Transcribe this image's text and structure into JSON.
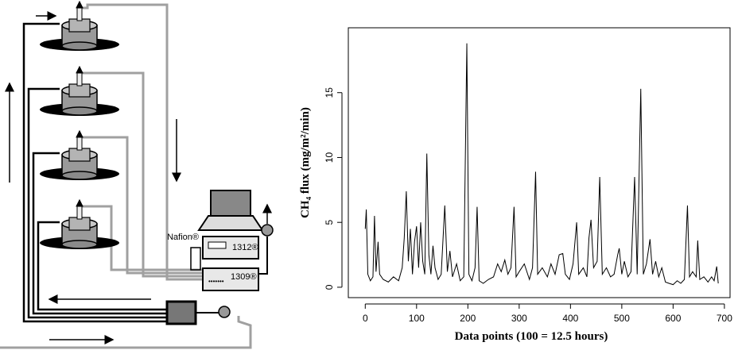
{
  "diagram": {
    "nafion": "Nafion®",
    "analyzer_a": "1312®",
    "analyzer_b": "1309®"
  },
  "chart_data": {
    "type": "line",
    "y_label": "CH₄ flux (mg/m²/min)",
    "x_label": "Data points (100 = 12.5 hours)",
    "xlim": [
      -33,
      711
    ],
    "ylim": [
      -0.8,
      20
    ],
    "xticks": [
      0,
      100,
      200,
      300,
      400,
      500,
      600,
      700
    ],
    "yticks": [
      0,
      5,
      10,
      15
    ],
    "color": "#000000",
    "x": [
      0,
      2,
      5,
      10,
      15,
      18,
      21,
      25,
      28,
      35,
      45,
      55,
      65,
      72,
      76,
      80,
      84,
      88,
      92,
      96,
      100,
      104,
      108,
      112,
      116,
      120,
      124,
      128,
      132,
      136,
      142,
      148,
      155,
      160,
      165,
      170,
      178,
      185,
      192,
      198,
      202,
      208,
      214,
      218,
      222,
      230,
      240,
      250,
      258,
      265,
      272,
      278,
      284,
      290,
      294,
      300,
      310,
      320,
      326,
      332,
      336,
      345,
      355,
      362,
      370,
      378,
      385,
      390,
      398,
      405,
      412,
      416,
      425,
      432,
      436,
      440,
      445,
      452,
      457,
      462,
      470,
      478,
      485,
      492,
      495,
      500,
      505,
      512,
      518,
      525,
      530,
      537,
      542,
      548,
      555,
      560,
      566,
      572,
      578,
      585,
      592,
      600,
      608,
      615,
      622,
      628,
      632,
      638,
      645,
      648,
      652,
      660,
      668,
      675,
      680,
      685,
      688
    ],
    "values": [
      4.5,
      6.0,
      1.0,
      0.5,
      0.8,
      5.5,
      1.2,
      3.5,
      1.0,
      0.6,
      0.4,
      0.8,
      0.5,
      1.5,
      3.8,
      7.4,
      2.0,
      4.5,
      1.0,
      3.5,
      4.7,
      1.5,
      5.0,
      2.0,
      1.0,
      10.3,
      2.5,
      1.0,
      3.2,
      1.5,
      0.6,
      1.0,
      6.3,
      1.2,
      2.8,
      0.8,
      1.8,
      0.5,
      0.8,
      18.8,
      1.0,
      0.5,
      1.5,
      6.2,
      0.5,
      0.3,
      0.6,
      0.8,
      1.8,
      1.2,
      2.1,
      1.0,
      1.5,
      6.2,
      0.8,
      1.2,
      1.8,
      0.6,
      1.5,
      8.9,
      1.0,
      1.5,
      0.8,
      1.8,
      1.0,
      2.5,
      2.6,
      1.0,
      0.6,
      1.8,
      5.0,
      1.0,
      1.5,
      0.8,
      3.8,
      5.2,
      1.5,
      2.0,
      8.5,
      1.0,
      1.5,
      0.8,
      1.0,
      2.5,
      3.0,
      1.0,
      2.0,
      0.8,
      1.2,
      8.5,
      1.0,
      15.3,
      1.0,
      1.8,
      3.7,
      1.0,
      2.0,
      0.8,
      1.5,
      0.4,
      0.3,
      0.2,
      0.5,
      0.3,
      0.6,
      6.3,
      0.8,
      1.2,
      0.8,
      3.6,
      0.6,
      0.8,
      0.4,
      0.8,
      0.5,
      1.6,
      0.3
    ]
  }
}
